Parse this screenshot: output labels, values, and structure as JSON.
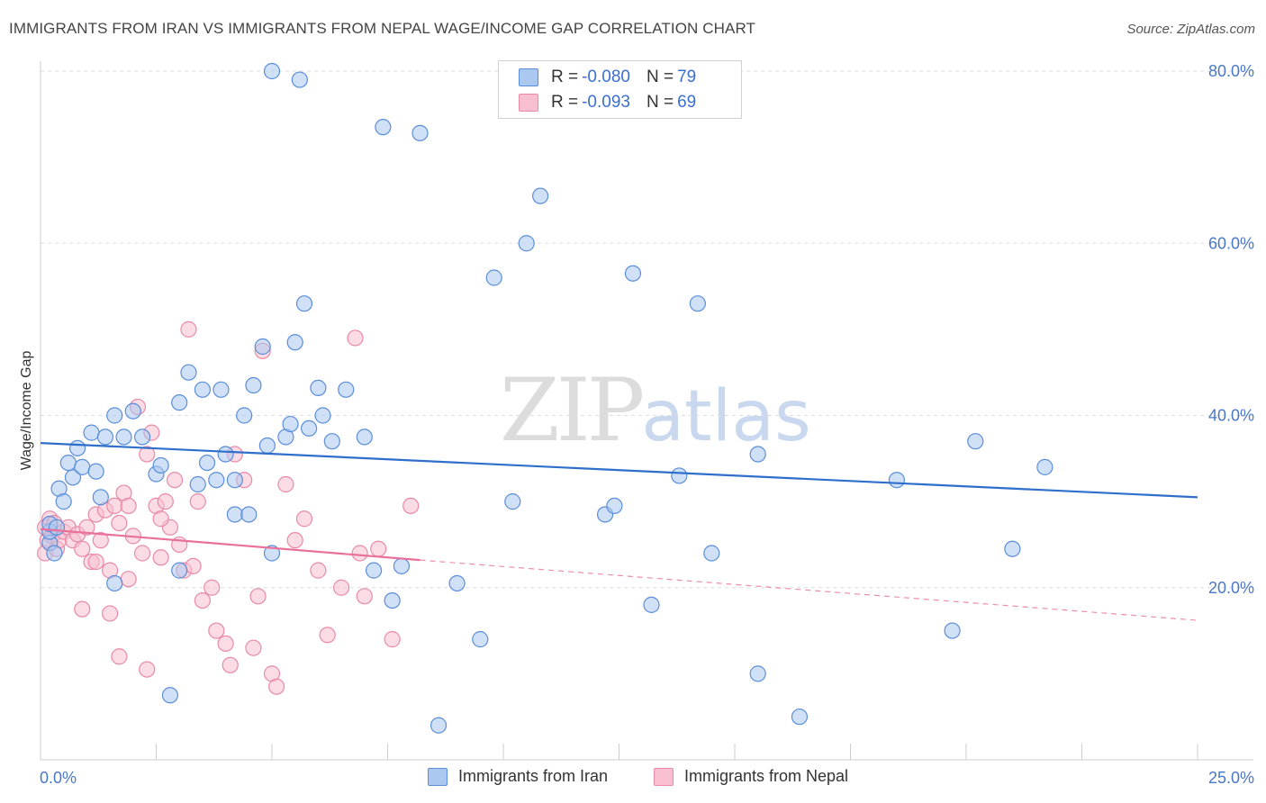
{
  "header": {
    "title": "IMMIGRANTS FROM IRAN VS IMMIGRANTS FROM NEPAL WAGE/INCOME GAP CORRELATION CHART",
    "source": "Source: ZipAtlas.com"
  },
  "watermark": {
    "zip": "ZIP",
    "atlas": "atlas"
  },
  "legend": {
    "iran": {
      "r_label": "R = ",
      "r_value": "-0.080",
      "n_label": "N = ",
      "n_value": "79"
    },
    "nepal": {
      "r_label": "R = ",
      "r_value": "-0.093",
      "n_label": "N = ",
      "n_value": "69"
    }
  },
  "colors": {
    "iran_fill": "#aac8f0",
    "iran_stroke": "#5b8ed8",
    "iran_line": "#2f6fcc",
    "nepal_fill": "#f7bfd0",
    "nepal_stroke": "#e88aa8",
    "nepal_line": "#e8709a",
    "grid": "#dddddd",
    "tick_text": "#4a78c8"
  },
  "chart_data": {
    "type": "scatter",
    "title": "IMMIGRANTS FROM IRAN VS IMMIGRANTS FROM NEPAL WAGE/INCOME GAP CORRELATION CHART",
    "xlabel": "",
    "ylabel": "Wage/Income Gap",
    "xlim": [
      0,
      25
    ],
    "ylim": [
      0,
      80
    ],
    "x_tick_labels": [
      "0.0%",
      "25.0%"
    ],
    "y_ticks": [
      20,
      40,
      60,
      80
    ],
    "y_tick_labels": [
      "20.0%",
      "40.0%",
      "60.0%",
      "80.0%"
    ],
    "grid": true,
    "legend_position": "top-center",
    "series": [
      {
        "name": "Immigrants from Iran",
        "trend": {
          "x": [
            0,
            25
          ],
          "y": [
            36.8,
            30.5
          ]
        },
        "points": [
          [
            0.2,
            25.2
          ],
          [
            0.2,
            26.5
          ],
          [
            0.2,
            27.4
          ],
          [
            0.35,
            27.0
          ],
          [
            0.4,
            31.5
          ],
          [
            0.5,
            30.0
          ],
          [
            0.6,
            34.5
          ],
          [
            0.7,
            32.8
          ],
          [
            0.8,
            36.2
          ],
          [
            0.9,
            34.0
          ],
          [
            1.1,
            38.0
          ],
          [
            1.2,
            33.5
          ],
          [
            1.4,
            37.5
          ],
          [
            1.6,
            40.0
          ],
          [
            1.8,
            37.5
          ],
          [
            2.0,
            40.5
          ],
          [
            2.2,
            37.5
          ],
          [
            2.5,
            33.2
          ],
          [
            2.6,
            34.2
          ],
          [
            3.0,
            41.5
          ],
          [
            3.2,
            45.0
          ],
          [
            3.4,
            32.0
          ],
          [
            3.5,
            43.0
          ],
          [
            3.6,
            34.5
          ],
          [
            3.8,
            32.5
          ],
          [
            3.9,
            43.0
          ],
          [
            4.0,
            35.5
          ],
          [
            4.2,
            32.5
          ],
          [
            4.2,
            28.5
          ],
          [
            4.4,
            40.0
          ],
          [
            4.5,
            28.5
          ],
          [
            4.6,
            43.5
          ],
          [
            4.8,
            48.0
          ],
          [
            4.9,
            36.5
          ],
          [
            5.0,
            80.0
          ],
          [
            5.0,
            24.0
          ],
          [
            5.3,
            37.5
          ],
          [
            5.4,
            39.0
          ],
          [
            5.5,
            48.5
          ],
          [
            5.6,
            79.0
          ],
          [
            5.7,
            53.0
          ],
          [
            5.8,
            38.5
          ],
          [
            6.0,
            43.2
          ],
          [
            6.1,
            40.0
          ],
          [
            6.3,
            37.0
          ],
          [
            6.6,
            43.0
          ],
          [
            7.0,
            37.5
          ],
          [
            7.2,
            22.0
          ],
          [
            7.6,
            18.5
          ],
          [
            7.4,
            73.5
          ],
          [
            8.2,
            72.8
          ],
          [
            8.6,
            4.0
          ],
          [
            9.0,
            20.5
          ],
          [
            9.5,
            14.0
          ],
          [
            9.8,
            56.0
          ],
          [
            10.2,
            30.0
          ],
          [
            10.5,
            60.0
          ],
          [
            10.8,
            65.5
          ],
          [
            12.2,
            28.5
          ],
          [
            12.4,
            29.5
          ],
          [
            12.8,
            56.5
          ],
          [
            13.2,
            18.0
          ],
          [
            13.8,
            33.0
          ],
          [
            14.2,
            53.0
          ],
          [
            14.5,
            24.0
          ],
          [
            15.5,
            10.0
          ],
          [
            15.5,
            35.5
          ],
          [
            16.4,
            5.0
          ],
          [
            18.5,
            32.5
          ],
          [
            19.7,
            15.0
          ],
          [
            20.2,
            37.0
          ],
          [
            21.0,
            24.5
          ],
          [
            21.7,
            34.0
          ],
          [
            2.8,
            7.5
          ],
          [
            3.0,
            22.0
          ],
          [
            7.8,
            22.5
          ],
          [
            1.6,
            20.5
          ],
          [
            0.3,
            24.0
          ],
          [
            1.3,
            30.5
          ]
        ]
      },
      {
        "name": "Immigrants from Nepal",
        "trend": {
          "x": [
            0,
            8.2
          ],
          "y": [
            26.8,
            23.2
          ]
        },
        "trend_dashed": {
          "x": [
            8.2,
            25
          ],
          "y": [
            23.2,
            16.2
          ]
        },
        "points": [
          [
            0.1,
            24.0
          ],
          [
            0.1,
            27.0
          ],
          [
            0.15,
            25.5
          ],
          [
            0.2,
            28.0
          ],
          [
            0.25,
            26.0
          ],
          [
            0.3,
            27.5
          ],
          [
            0.35,
            24.5
          ],
          [
            0.4,
            25.5
          ],
          [
            0.5,
            26.5
          ],
          [
            0.6,
            27.0
          ],
          [
            0.7,
            25.5
          ],
          [
            0.8,
            26.2
          ],
          [
            0.9,
            24.5
          ],
          [
            1.0,
            27.0
          ],
          [
            1.1,
            23.0
          ],
          [
            1.2,
            28.5
          ],
          [
            1.3,
            25.5
          ],
          [
            1.4,
            29.0
          ],
          [
            1.5,
            22.0
          ],
          [
            1.6,
            29.5
          ],
          [
            1.7,
            27.5
          ],
          [
            1.8,
            31.0
          ],
          [
            1.9,
            29.5
          ],
          [
            2.0,
            26.0
          ],
          [
            2.1,
            41.0
          ],
          [
            2.2,
            24.0
          ],
          [
            2.3,
            35.5
          ],
          [
            2.4,
            38.0
          ],
          [
            2.5,
            29.5
          ],
          [
            2.6,
            23.5
          ],
          [
            2.7,
            30.0
          ],
          [
            2.8,
            27.0
          ],
          [
            2.9,
            32.5
          ],
          [
            3.0,
            25.0
          ],
          [
            3.1,
            22.0
          ],
          [
            3.2,
            50.0
          ],
          [
            3.3,
            22.5
          ],
          [
            3.5,
            18.5
          ],
          [
            3.7,
            20.0
          ],
          [
            3.8,
            15.0
          ],
          [
            4.0,
            13.5
          ],
          [
            4.2,
            35.5
          ],
          [
            4.4,
            32.5
          ],
          [
            4.6,
            13.0
          ],
          [
            4.7,
            19.0
          ],
          [
            4.8,
            47.5
          ],
          [
            5.0,
            10.0
          ],
          [
            5.1,
            8.5
          ],
          [
            5.3,
            32.0
          ],
          [
            5.5,
            25.5
          ],
          [
            5.7,
            28.0
          ],
          [
            6.0,
            22.0
          ],
          [
            6.2,
            14.5
          ],
          [
            6.5,
            20.0
          ],
          [
            6.8,
            49.0
          ],
          [
            7.0,
            19.0
          ],
          [
            7.3,
            24.5
          ],
          [
            7.6,
            14.0
          ],
          [
            8.0,
            29.5
          ],
          [
            1.2,
            23.0
          ],
          [
            1.5,
            17.0
          ],
          [
            1.7,
            12.0
          ],
          [
            2.3,
            10.5
          ],
          [
            0.9,
            17.5
          ],
          [
            1.9,
            21.0
          ],
          [
            2.6,
            28.0
          ],
          [
            3.4,
            30.0
          ],
          [
            4.1,
            11.0
          ],
          [
            6.9,
            24.0
          ]
        ]
      }
    ]
  },
  "bottom_legend": {
    "iran_label": "Immigrants from Iran",
    "nepal_label": "Immigrants from Nepal"
  }
}
